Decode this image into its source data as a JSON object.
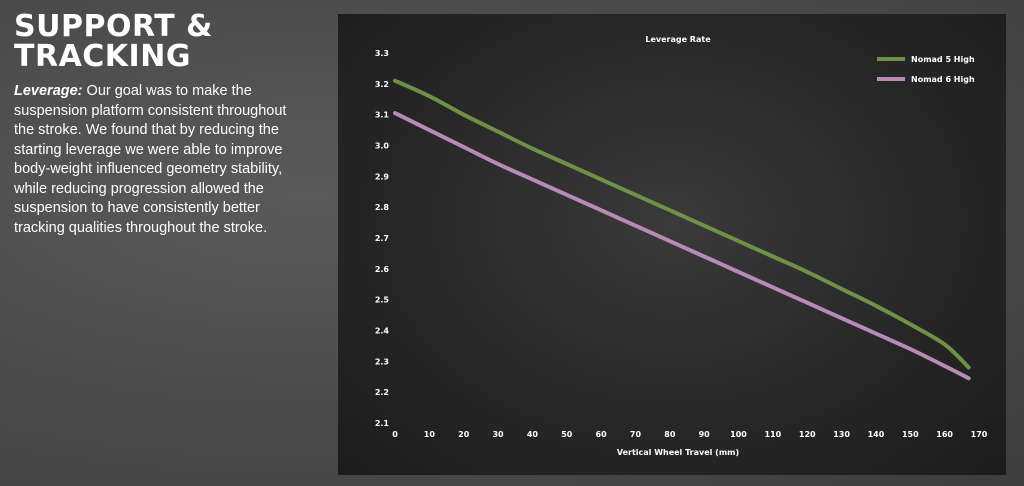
{
  "section": {
    "title_line1": "SUPPORT &",
    "title_line2": "TRACKING",
    "lead": "Leverage:",
    "body": " Our goal was to make the suspension platform consistent throughout the stroke. We found that by reducing the starting leverage we were able to improve body-weight influenced geometry stability, while reducing progression allowed the suspension to have consistently better tracking qualities throughout the stroke."
  },
  "chart_data": {
    "type": "line",
    "title": "Leverage Rate",
    "xlabel": "Vertical Wheel Travel (mm)",
    "ylabel": "",
    "xlim": [
      0,
      170
    ],
    "ylim": [
      2.1,
      3.3
    ],
    "x_ticks": [
      0,
      10,
      20,
      30,
      40,
      50,
      60,
      70,
      80,
      90,
      100,
      110,
      120,
      130,
      140,
      150,
      160,
      170
    ],
    "y_ticks": [
      "3.3",
      "3.2",
      "3.1",
      "3.0",
      "2.9",
      "2.8",
      "2.7",
      "2.6",
      "2.5",
      "2.4",
      "2.3",
      "2.2",
      "2.1"
    ],
    "grid": false,
    "legend_position": "top-right",
    "series": [
      {
        "name": "Nomad 5 High",
        "color": "#6f9146",
        "x": [
          0,
          10,
          20,
          30,
          40,
          50,
          60,
          70,
          80,
          90,
          100,
          110,
          120,
          130,
          140,
          150,
          160,
          167
        ],
        "y": [
          3.21,
          3.16,
          3.1,
          3.045,
          2.99,
          2.94,
          2.89,
          2.84,
          2.79,
          2.74,
          2.69,
          2.64,
          2.59,
          2.535,
          2.48,
          2.42,
          2.355,
          2.28
        ]
      },
      {
        "name": "Nomad 6 High",
        "color": "#b88ab8",
        "x": [
          0,
          10,
          20,
          30,
          40,
          50,
          60,
          70,
          80,
          90,
          100,
          110,
          120,
          130,
          140,
          150,
          160,
          167
        ],
        "y": [
          3.105,
          3.05,
          2.995,
          2.94,
          2.89,
          2.84,
          2.79,
          2.74,
          2.69,
          2.64,
          2.59,
          2.54,
          2.49,
          2.44,
          2.39,
          2.34,
          2.285,
          2.245
        ]
      }
    ]
  }
}
